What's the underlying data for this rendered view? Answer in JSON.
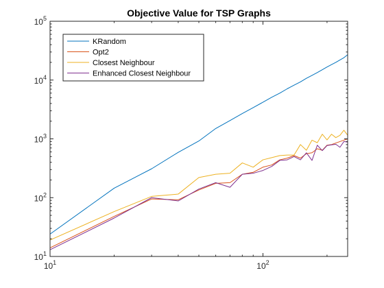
{
  "chart_data": {
    "type": "line",
    "title": "Objective Value for TSP Graphs",
    "xlabel": "",
    "ylabel": "",
    "xscale": "log",
    "yscale": "log",
    "xlim": [
      10,
      250
    ],
    "ylim": [
      10,
      100000
    ],
    "x_ticks": [
      {
        "value": 10,
        "base": "10",
        "exp": "1"
      },
      {
        "value": 100,
        "base": "10",
        "exp": "2"
      }
    ],
    "y_ticks": [
      {
        "value": 10,
        "base": "10",
        "exp": "1"
      },
      {
        "value": 100,
        "base": "10",
        "exp": "2"
      },
      {
        "value": 1000,
        "base": "10",
        "exp": "3"
      },
      {
        "value": 10000,
        "base": "10",
        "exp": "4"
      },
      {
        "value": 100000,
        "base": "10",
        "exp": "5"
      }
    ],
    "grid": false,
    "legend_position": "top-left",
    "series": [
      {
        "name": "KRandom",
        "color": "#0072BD",
        "x": [
          10,
          20,
          30,
          40,
          50,
          60,
          70,
          80,
          90,
          100,
          110,
          120,
          130,
          140,
          150,
          160,
          170,
          180,
          190,
          200,
          210,
          220,
          230,
          240,
          250
        ],
        "y": [
          24,
          145,
          310,
          590,
          920,
          1500,
          2050,
          2700,
          3400,
          4200,
          5100,
          6000,
          7100,
          8200,
          9300,
          10700,
          12000,
          13400,
          15000,
          16700,
          18300,
          20000,
          22000,
          24000,
          27000
        ]
      },
      {
        "name": "Opt2",
        "color": "#D95319",
        "x": [
          10,
          20,
          30,
          40,
          50,
          60,
          70,
          80,
          90,
          100,
          110,
          120,
          130,
          140,
          150,
          160,
          170,
          180,
          190,
          200,
          210,
          220,
          230,
          240,
          250
        ],
        "y": [
          14,
          48,
          95,
          92,
          135,
          175,
          180,
          250,
          270,
          330,
          360,
          440,
          470,
          520,
          470,
          560,
          580,
          680,
          640,
          780,
          800,
          850,
          900,
          950,
          1000
        ]
      },
      {
        "name": "Closest Neighbour",
        "color": "#EDB120",
        "x": [
          10,
          20,
          30,
          40,
          50,
          60,
          70,
          80,
          90,
          100,
          110,
          120,
          130,
          140,
          150,
          160,
          170,
          180,
          190,
          200,
          210,
          220,
          230,
          240,
          250
        ],
        "y": [
          19,
          58,
          105,
          115,
          220,
          250,
          260,
          390,
          330,
          440,
          480,
          520,
          530,
          530,
          800,
          640,
          950,
          860,
          1200,
          960,
          1200,
          1050,
          1150,
          1400,
          1150
        ]
      },
      {
        "name": "Enhanced Closest Neighbour",
        "color": "#7E2F8E",
        "x": [
          10,
          20,
          30,
          40,
          50,
          60,
          70,
          80,
          90,
          100,
          110,
          120,
          130,
          140,
          150,
          160,
          170,
          180,
          190,
          200,
          210,
          220,
          230,
          240,
          250
        ],
        "y": [
          13,
          45,
          100,
          88,
          140,
          180,
          150,
          250,
          260,
          290,
          340,
          430,
          440,
          500,
          440,
          580,
          430,
          780,
          630,
          770,
          790,
          810,
          720,
          900,
          880
        ]
      }
    ]
  }
}
